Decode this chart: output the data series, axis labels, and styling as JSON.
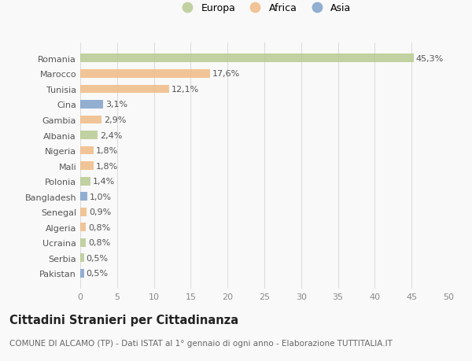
{
  "countries": [
    "Romania",
    "Marocco",
    "Tunisia",
    "Cina",
    "Gambia",
    "Albania",
    "Nigeria",
    "Mali",
    "Polonia",
    "Bangladesh",
    "Senegal",
    "Algeria",
    "Ucraina",
    "Serbia",
    "Pakistan"
  ],
  "values": [
    45.3,
    17.6,
    12.1,
    3.1,
    2.9,
    2.4,
    1.8,
    1.8,
    1.4,
    1.0,
    0.9,
    0.8,
    0.8,
    0.5,
    0.5
  ],
  "labels": [
    "45,3%",
    "17,6%",
    "12,1%",
    "3,1%",
    "2,9%",
    "2,4%",
    "1,8%",
    "1,8%",
    "1,4%",
    "1,0%",
    "0,9%",
    "0,8%",
    "0,8%",
    "0,5%",
    "0,5%"
  ],
  "colors": [
    "#b5c98e",
    "#f0b982",
    "#f0b982",
    "#7b9fc9",
    "#f0b982",
    "#b5c98e",
    "#f0b982",
    "#f0b982",
    "#b5c98e",
    "#7b9fc9",
    "#f0b982",
    "#f0b982",
    "#b5c98e",
    "#b5c98e",
    "#7b9fc9"
  ],
  "legend_labels": [
    "Europa",
    "Africa",
    "Asia"
  ],
  "legend_colors": [
    "#b5c98e",
    "#f0b982",
    "#7b9fc9"
  ],
  "title": "Cittadini Stranieri per Cittadinanza",
  "subtitle": "COMUNE DI ALCAMO (TP) - Dati ISTAT al 1° gennaio di ogni anno - Elaborazione TUTTITALIA.IT",
  "xlim": [
    0,
    50
  ],
  "xticks": [
    0,
    5,
    10,
    15,
    20,
    25,
    30,
    35,
    40,
    45,
    50
  ],
  "background_color": "#f9f9f9",
  "bar_alpha": 0.82,
  "grid_color": "#dddddd",
  "label_fontsize": 8.0,
  "tick_fontsize": 8.0,
  "title_fontsize": 10.5,
  "subtitle_fontsize": 7.5,
  "legend_fontsize": 9.0,
  "bar_height": 0.55
}
